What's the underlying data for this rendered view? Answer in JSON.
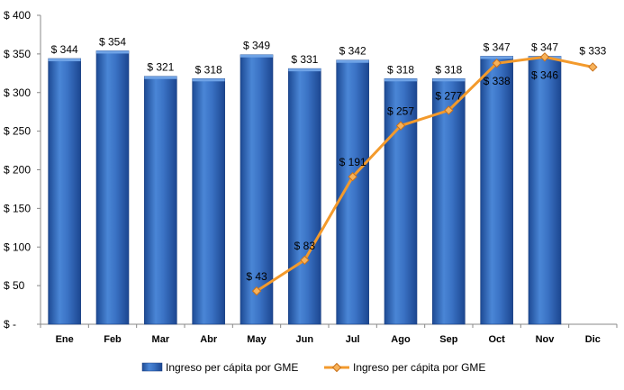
{
  "chart_data": {
    "type": "bar",
    "categories": [
      "Ene",
      "Feb",
      "Mar",
      "Abr",
      "May",
      "Jun",
      "Jul",
      "Ago",
      "Sep",
      "Oct",
      "Nov",
      "Dic"
    ],
    "ylim": [
      0,
      400
    ],
    "yticks": [
      {
        "value": 0,
        "label": "$ -"
      },
      {
        "value": 50,
        "label": "$ 50"
      },
      {
        "value": 100,
        "label": "$ 100"
      },
      {
        "value": 150,
        "label": "$ 150"
      },
      {
        "value": 200,
        "label": "$ 200"
      },
      {
        "value": 250,
        "label": "$ 250"
      },
      {
        "value": 300,
        "label": "$ 300"
      },
      {
        "value": 350,
        "label": "$ 350"
      },
      {
        "value": 400,
        "label": "$ 400"
      }
    ],
    "grid": false,
    "legend_position": "bottom",
    "series": [
      {
        "name": "Ingreso per cápita por GME",
        "type": "bar",
        "color": "#2f66b6",
        "values": [
          344,
          354,
          321,
          318,
          349,
          331,
          342,
          318,
          318,
          347,
          347,
          null
        ],
        "labels": [
          "$ 344",
          "$ 354",
          "$ 321",
          "$ 318",
          "$ 349",
          "$ 331",
          "$ 342",
          "$ 318",
          "$ 318",
          "$ 347",
          "$ 347",
          null
        ]
      },
      {
        "name": "Ingreso per cápita por GME",
        "type": "line",
        "color": "#f39a2c",
        "values": [
          null,
          null,
          null,
          null,
          43,
          83,
          191,
          257,
          277,
          338,
          346,
          333
        ],
        "labels": [
          null,
          null,
          null,
          null,
          "$ 43",
          "$ 83",
          "$ 191",
          "$ 257",
          "$ 277",
          "$ 338",
          "$ 346",
          "$ 333"
        ]
      }
    ]
  }
}
